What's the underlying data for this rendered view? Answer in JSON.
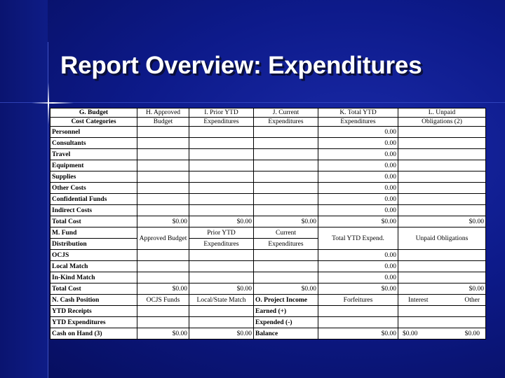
{
  "slide": {
    "title": "Report Overview: Expenditures"
  },
  "table": {
    "header": [
      [
        "G.  Budget",
        "H.  Approved",
        "I. Prior YTD",
        "J.  Current",
        "K.  Total YTD",
        "L.  Unpaid"
      ],
      [
        "Cost Categories",
        "Budget",
        "Expenditures",
        "Expenditures",
        "Expenditures",
        "Obligations  (2)"
      ]
    ],
    "cost_rows": [
      {
        "label": "Personnel",
        "total": "0.00"
      },
      {
        "label": "Consultants",
        "total": "0.00"
      },
      {
        "label": "Travel",
        "total": "0.00"
      },
      {
        "label": "Equipment",
        "total": "0.00"
      },
      {
        "label": "Supplies",
        "total": "0.00"
      },
      {
        "label": "Other Costs",
        "total": "0.00"
      },
      {
        "label": "Confidential Funds",
        "total": "0.00"
      },
      {
        "label": "Indirect Costs",
        "total": "0.00"
      }
    ],
    "total_cost_1": {
      "label": "Total Cost",
      "values": [
        "$0.00",
        "$0.00",
        "$0.00",
        "$0.00",
        "$0.00"
      ]
    },
    "fund_header": {
      "c0a": "M. Fund",
      "c0b": "Distribution",
      "c1": "Approved Budget",
      "c2a": "Prior YTD",
      "c2b": "Expenditures",
      "c3a": "Current",
      "c3b": "Expenditures",
      "c4": "Total YTD Expend.",
      "c5": "Unpaid Obligations"
    },
    "fund_rows": [
      {
        "label": "OCJS",
        "total": "0.00"
      },
      {
        "label": "Local Match",
        "total": "0.00"
      },
      {
        "label": "In-Kind Match",
        "total": "0.00"
      }
    ],
    "total_cost_2": {
      "label": "Total Cost",
      "values": [
        "$0.00",
        "$0.00",
        "$0.00",
        "$0.00",
        "$0.00"
      ]
    },
    "cash_header": {
      "c0": "N.  Cash Position",
      "c1": "OCJS Funds",
      "c2": "Local/State Match",
      "c3": "O. Project Income",
      "c4": "Forfeitures",
      "c5a": "Interest",
      "c5b": "Other"
    },
    "cash_rows": [
      {
        "label": "YTD Receipts",
        "income": "Earned (+)"
      },
      {
        "label": "YTD Expenditures",
        "income": "Expended (-)"
      }
    ],
    "cash_on_hand": {
      "label": "Cash on Hand    (3)",
      "v1": "$0.00",
      "v2": "$0.00",
      "balance": "Balance",
      "v4": "$0.00",
      "v5a": "$0.00",
      "v5b": "$0.00"
    }
  }
}
